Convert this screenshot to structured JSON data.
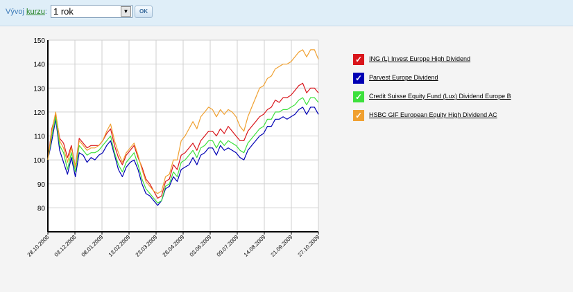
{
  "toolbar": {
    "label_prefix": "Vývoj",
    "label_link": "kurzu",
    "label_suffix": ":",
    "period_value": "1 rok",
    "ok_label": "OK"
  },
  "chart_data": {
    "type": "line",
    "xlabel": "",
    "ylabel": "",
    "ylim": [
      70,
      150
    ],
    "yticks": [
      80,
      90,
      100,
      110,
      120,
      130,
      140,
      150
    ],
    "xticks": [
      "28.10.2008",
      "03.12.2008",
      "08.01.2009",
      "13.02.2009",
      "23.03.2009",
      "28.04.2009",
      "03.06.2009",
      "09.07.2009",
      "14.08.2009",
      "21.09.2009",
      "27.10.2009"
    ],
    "grid": true,
    "legend_position": "right",
    "series": [
      {
        "name": "ING (L) Invest Europe High Dividend",
        "color": "#d9151b",
        "values": [
          100,
          113,
          119,
          109,
          107,
          101,
          106,
          97,
          109,
          107,
          105,
          106,
          106,
          106,
          108,
          111,
          113,
          106,
          101,
          98,
          102,
          104,
          106,
          101,
          97,
          92,
          90,
          87,
          84,
          85,
          91,
          92,
          98,
          96,
          102,
          103,
          105,
          107,
          104,
          108,
          110,
          112,
          112,
          110,
          113,
          111,
          114,
          112,
          110,
          108,
          108,
          112,
          114,
          116,
          118,
          119,
          121,
          122,
          125,
          124,
          126,
          126,
          127,
          129,
          131,
          132,
          128,
          130,
          130,
          128
        ]
      },
      {
        "name": "Parvest Europe Dividend",
        "color": "#0000b4",
        "values": [
          100,
          108,
          117,
          104,
          99,
          94,
          101,
          93,
          103,
          102,
          99,
          101,
          100,
          102,
          103,
          106,
          108,
          102,
          96,
          93,
          97,
          99,
          100,
          96,
          90,
          86,
          85,
          83,
          81,
          83,
          88,
          89,
          93,
          91,
          96,
          97,
          98,
          101,
          98,
          102,
          103,
          105,
          105,
          102,
          106,
          104,
          105,
          104,
          103,
          101,
          100,
          104,
          106,
          108,
          110,
          111,
          114,
          114,
          117,
          117,
          118,
          117,
          118,
          119,
          121,
          122,
          119,
          122,
          122,
          119
        ]
      },
      {
        "name": "Credit Suisse Equity Fund (Lux) Dividend Europe B",
        "color": "#3ce03c",
        "values": [
          100,
          110,
          118,
          106,
          103,
          96,
          103,
          95,
          106,
          104,
          102,
          103,
          103,
          104,
          106,
          108,
          110,
          103,
          98,
          95,
          99,
          101,
          103,
          98,
          92,
          88,
          86,
          84,
          82,
          83,
          89,
          90,
          95,
          93,
          99,
          100,
          102,
          104,
          101,
          105,
          106,
          108,
          108,
          105,
          108,
          106,
          108,
          107,
          106,
          104,
          103,
          107,
          109,
          111,
          113,
          114,
          117,
          117,
          120,
          120,
          121,
          121,
          122,
          123,
          125,
          126,
          123,
          126,
          126,
          124
        ]
      },
      {
        "name": "HSBC GIF European Equity High Dividend AC",
        "color": "#f0a030",
        "values": [
          100,
          112,
          120,
          108,
          105,
          99,
          105,
          97,
          108,
          106,
          104,
          105,
          105,
          106,
          108,
          112,
          115,
          108,
          103,
          99,
          103,
          105,
          107,
          102,
          96,
          91,
          89,
          87,
          86,
          87,
          93,
          94,
          100,
          100,
          108,
          110,
          113,
          116,
          113,
          118,
          120,
          122,
          121,
          118,
          121,
          119,
          121,
          120,
          118,
          114,
          112,
          118,
          122,
          126,
          130,
          131,
          134,
          135,
          138,
          139,
          140,
          140,
          141,
          143,
          145,
          146,
          143,
          146,
          146,
          142
        ]
      }
    ]
  }
}
